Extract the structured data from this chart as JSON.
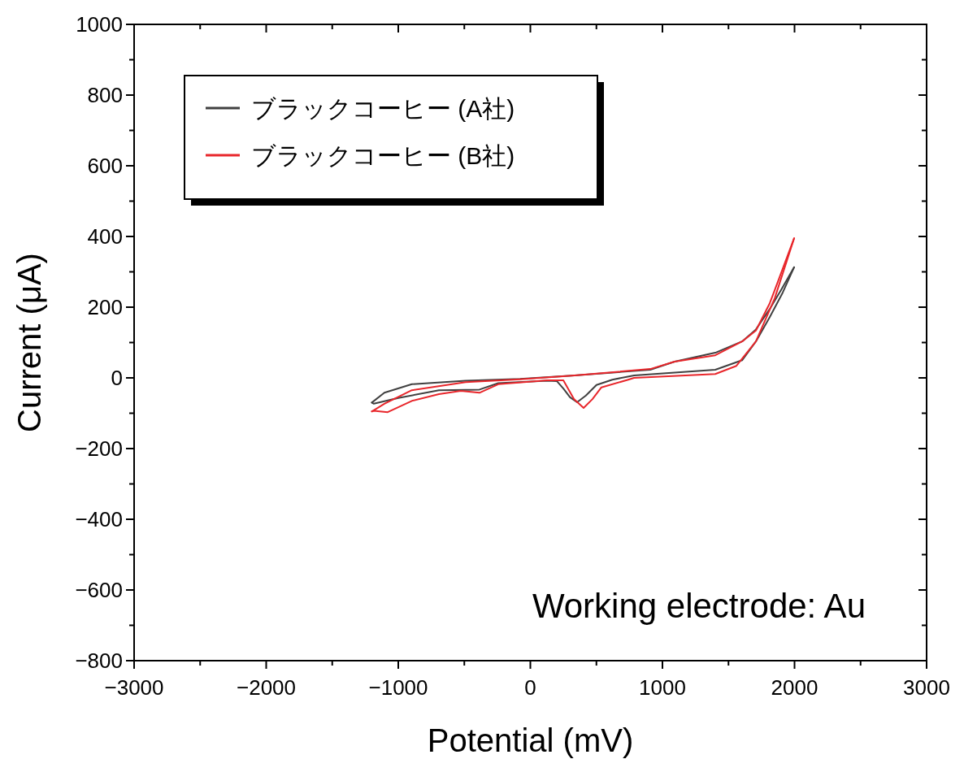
{
  "chart_data": {
    "type": "line",
    "xlabel": "Potential (mV)",
    "ylabel": "Current (μA)",
    "xlim": [
      -3000,
      3000
    ],
    "ylim": [
      -800,
      1000
    ],
    "xticks": [
      -3000,
      -2000,
      -1000,
      0,
      1000,
      2000,
      3000
    ],
    "yticks": [
      -800,
      -600,
      -400,
      -200,
      0,
      200,
      400,
      600,
      800,
      1000
    ],
    "grid": false,
    "legend": "top left",
    "marker": "none",
    "line_style": "solid",
    "annotations": [
      "Working electrode: Au"
    ],
    "series": [
      {
        "name": "ブラックコーヒー (A社)",
        "color": "#404040",
        "x": [
          -1200,
          -1105,
          -897,
          -490,
          -77,
          335,
          908,
          1092,
          1400,
          1603,
          1708,
          1812,
          1900,
          1997
        ],
        "values": [
          -70,
          -42,
          -18,
          -8,
          -3,
          7,
          23,
          46,
          71,
          103,
          137,
          195,
          250,
          313
        ]
      },
      {
        "color": "#404040",
        "x": [
          -1200,
          -1185,
          -1000,
          -692,
          -385,
          -243,
          126,
          200,
          250,
          300,
          354,
          420,
          500,
          620,
          785,
          1400,
          1603,
          1708,
          1812,
          1910,
          1997
        ],
        "values": [
          -70,
          -73,
          -57,
          -35,
          -33,
          -15,
          -8,
          -9,
          -30,
          -55,
          -69,
          -50,
          -20,
          -5,
          7,
          23,
          50,
          103,
          172,
          241,
          313
        ]
      },
      {
        "name": "ブラックコーヒー (B社)",
        "color": "#e8262b",
        "x": [
          -1200,
          -1105,
          -897,
          -490,
          -77,
          335,
          908,
          1092,
          1400,
          1603,
          1708,
          1812,
          1850,
          1997
        ],
        "values": [
          -95,
          -73,
          -35,
          -12,
          -4,
          7,
          25,
          46,
          64,
          103,
          134,
          211,
          248,
          395
        ]
      },
      {
        "color": "#e8262b",
        "x": [
          -1200,
          -1185,
          -1080,
          -897,
          -692,
          -527,
          -385,
          -243,
          126,
          250,
          330,
          403,
          470,
          538,
          741,
          785,
          1400,
          1560,
          1708,
          1850,
          1997
        ],
        "values": [
          -95,
          -93,
          -97,
          -65,
          -46,
          -37,
          -42,
          -18,
          -7,
          -7,
          -60,
          -85,
          -60,
          -27,
          -5,
          0,
          11,
          34,
          103,
          225,
          395
        ]
      }
    ]
  }
}
